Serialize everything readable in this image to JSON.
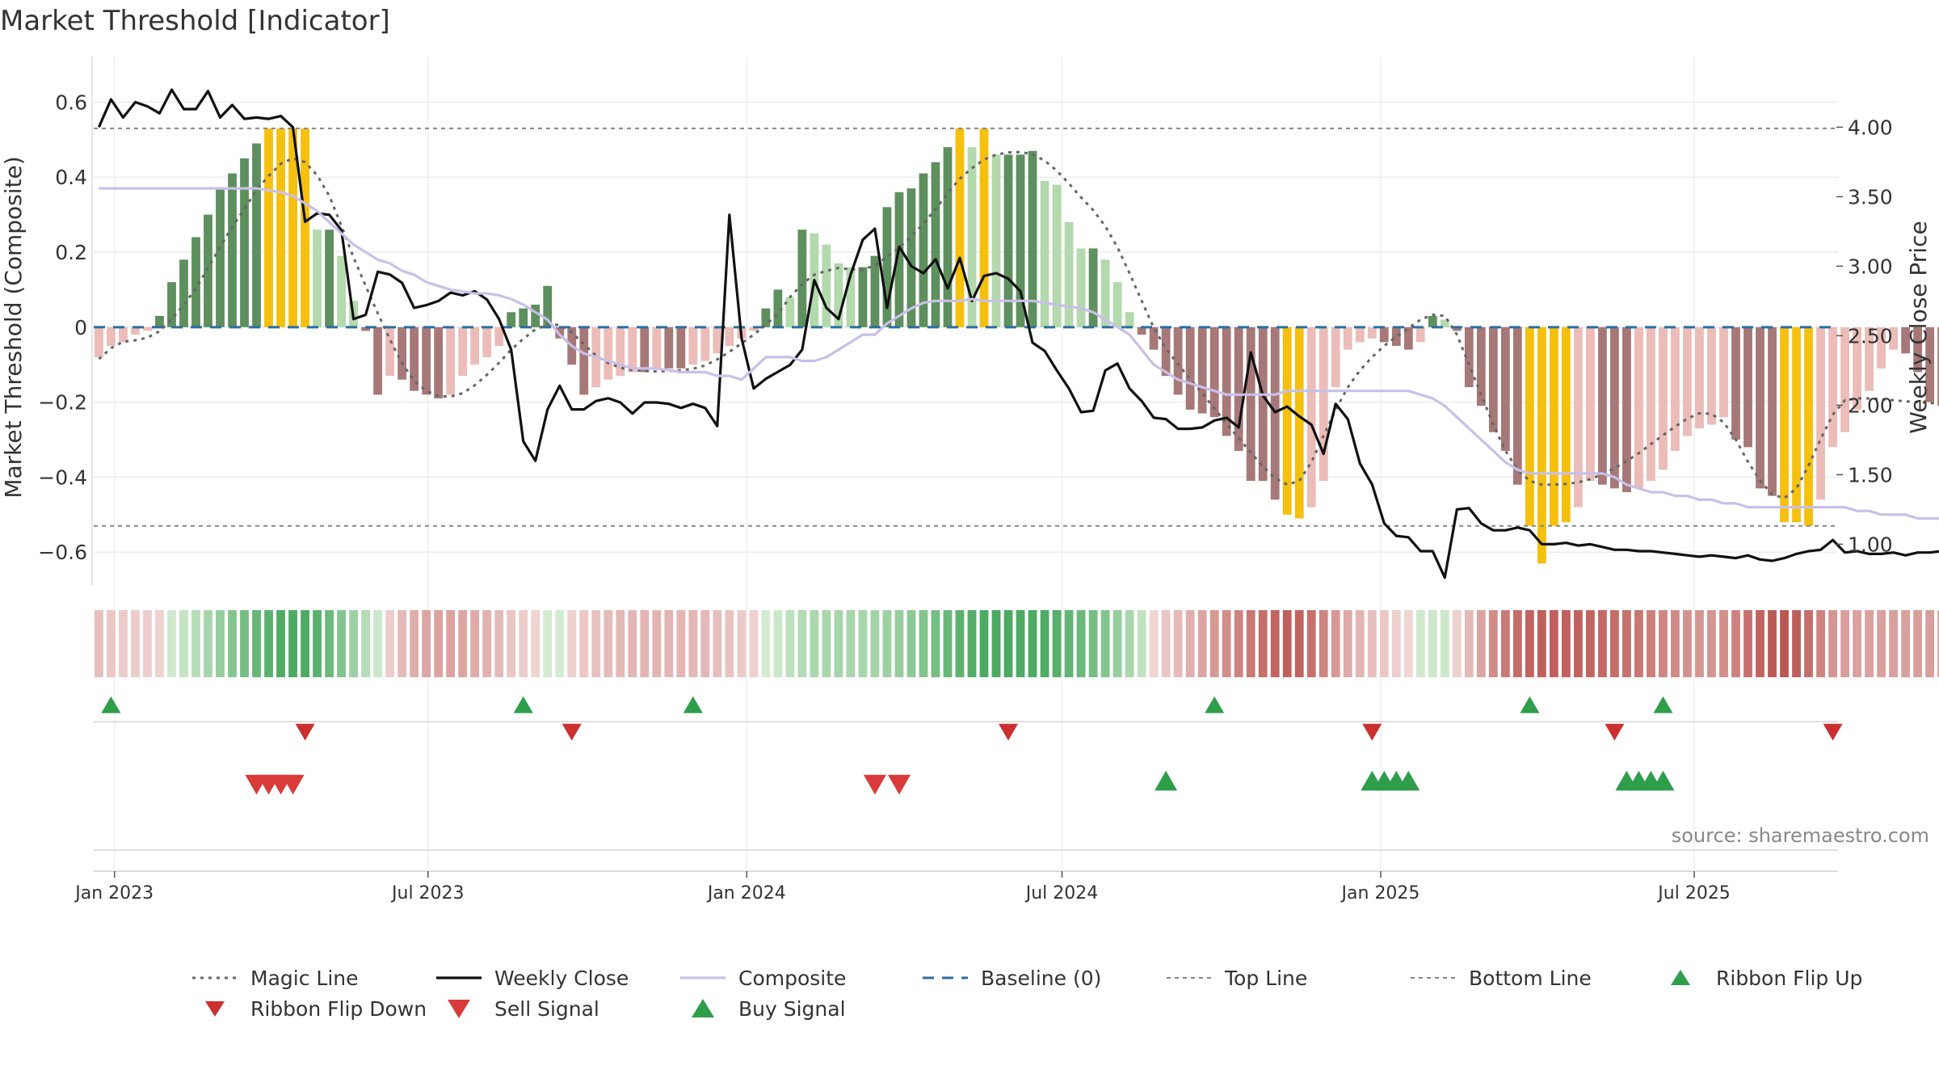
{
  "chart_data": {
    "type": "bar",
    "title": "Market Threshold [Indicator]",
    "ylabel": "Market Threshold (Composite)",
    "ylabel_right": "Weekly Close Price",
    "source": "source: sharemaestro.com",
    "ylim": [
      -0.69,
      0.7
    ],
    "ylim_right": [
      0.7,
      4.45
    ],
    "yticks": [
      "0.6",
      "0.4",
      "0.2",
      "0",
      "−0.2",
      "−0.4",
      "−0.6"
    ],
    "yticks_right": [
      "4.00",
      "3.50",
      "3.00",
      "2.50",
      "2.00",
      "1.50",
      "1.00"
    ],
    "xticks": [
      "Jan 2023",
      "Jul 2023",
      "Jan 2024",
      "Jul 2024",
      "Jan 2025",
      "Jul 2025"
    ],
    "top_line": 0.53,
    "bottom_line": -0.53,
    "baseline": 0,
    "x_start": "2022-12-23",
    "x_step_days": 7,
    "bars": [
      -0.08,
      -0.05,
      -0.04,
      -0.02,
      -0.01,
      0.03,
      0.12,
      0.18,
      0.24,
      0.3,
      0.37,
      0.41,
      0.45,
      0.49,
      0.53,
      0.53,
      0.53,
      0.53,
      0.26,
      0.26,
      0.19,
      0.07,
      -0.01,
      -0.18,
      -0.13,
      -0.14,
      -0.17,
      -0.18,
      -0.19,
      -0.18,
      -0.13,
      -0.1,
      -0.08,
      -0.05,
      0.04,
      0.05,
      0.06,
      0.11,
      -0.03,
      -0.1,
      -0.18,
      -0.16,
      -0.14,
      -0.13,
      -0.12,
      -0.12,
      -0.11,
      -0.11,
      -0.11,
      -0.1,
      -0.09,
      -0.07,
      -0.05,
      -0.03,
      -0.01,
      0.05,
      0.1,
      0.08,
      0.26,
      0.25,
      0.22,
      0.17,
      0.16,
      0.16,
      0.19,
      0.32,
      0.36,
      0.37,
      0.41,
      0.44,
      0.48,
      0.53,
      0.48,
      0.53,
      0.46,
      0.46,
      0.46,
      0.47,
      0.39,
      0.38,
      0.28,
      0.21,
      0.21,
      0.18,
      0.12,
      0.04,
      -0.02,
      -0.06,
      -0.13,
      -0.18,
      -0.22,
      -0.23,
      -0.24,
      -0.29,
      -0.33,
      -0.41,
      -0.41,
      -0.46,
      -0.5,
      -0.51,
      -0.48,
      -0.41,
      -0.16,
      -0.06,
      -0.04,
      -0.03,
      -0.04,
      -0.05,
      -0.06,
      -0.04,
      0.03,
      0.02,
      -0.01,
      -0.16,
      -0.21,
      -0.28,
      -0.33,
      -0.42,
      -0.53,
      -0.63,
      -0.53,
      -0.52,
      -0.48,
      -0.41,
      -0.42,
      -0.43,
      -0.44,
      -0.43,
      -0.41,
      -0.38,
      -0.33,
      -0.29,
      -0.27,
      -0.26,
      -0.24,
      -0.3,
      -0.32,
      -0.43,
      -0.45,
      -0.52,
      -0.52,
      -0.53,
      -0.46,
      -0.32,
      -0.28,
      -0.22,
      -0.17,
      -0.11,
      -0.06,
      -0.07,
      -0.12,
      -0.2,
      -0.21,
      -0.2,
      -0.21,
      -0.21,
      -0.21,
      -0.22,
      -0.25,
      -0.29
    ],
    "series": [
      {
        "name": "Magic Line",
        "axis": "left",
        "values": [
          -0.085,
          -0.056,
          -0.039,
          -0.035,
          -0.028,
          -0.011,
          0.021,
          0.06,
          0.103,
          0.158,
          0.213,
          0.268,
          0.315,
          0.366,
          0.403,
          0.436,
          0.45,
          0.44,
          0.405,
          0.35,
          0.27,
          0.186,
          0.11,
          0.037,
          -0.033,
          -0.096,
          -0.143,
          -0.17,
          -0.184,
          -0.185,
          -0.176,
          -0.155,
          -0.127,
          -0.095,
          -0.06,
          -0.031,
          -0.006,
          0.007,
          0.006,
          -0.014,
          -0.046,
          -0.076,
          -0.096,
          -0.108,
          -0.115,
          -0.117,
          -0.118,
          -0.117,
          -0.115,
          -0.111,
          -0.102,
          -0.086,
          -0.066,
          -0.043,
          -0.02,
          0.006,
          0.036,
          0.08,
          0.115,
          0.14,
          0.15,
          0.158,
          0.154,
          0.153,
          0.165,
          0.187,
          0.213,
          0.242,
          0.276,
          0.315,
          0.357,
          0.396,
          0.424,
          0.447,
          0.46,
          0.466,
          0.467,
          0.461,
          0.444,
          0.417,
          0.383,
          0.346,
          0.312,
          0.269,
          0.213,
          0.144,
          0.07,
          -0.002,
          -0.057,
          -0.099,
          -0.138,
          -0.177,
          -0.217,
          -0.258,
          -0.296,
          -0.334,
          -0.372,
          -0.403,
          -0.42,
          -0.41,
          -0.36,
          -0.29,
          -0.22,
          -0.16,
          -0.115,
          -0.08,
          -0.05,
          -0.025,
          -0.003,
          0.02,
          0.033,
          0.03,
          -0.02,
          -0.1,
          -0.18,
          -0.26,
          -0.33,
          -0.38,
          -0.41,
          -0.42,
          -0.42,
          -0.418,
          -0.414,
          -0.405,
          -0.392,
          -0.376,
          -0.357,
          -0.336,
          -0.312,
          -0.288,
          -0.265,
          -0.244,
          -0.23,
          -0.231,
          -0.254,
          -0.3,
          -0.359,
          -0.409,
          -0.446,
          -0.456,
          -0.43,
          -0.369,
          -0.298,
          -0.233,
          -0.195,
          -0.19,
          -0.19,
          -0.192,
          -0.195,
          -0.198,
          -0.2,
          -0.202,
          -0.205,
          -0.21,
          -0.212,
          -0.215
        ]
      },
      {
        "name": "Weekly Close",
        "axis": "right",
        "values": [
          4.0,
          4.2,
          4.07,
          4.18,
          4.15,
          4.1,
          4.27,
          4.13,
          4.13,
          4.26,
          4.07,
          4.16,
          4.06,
          4.07,
          4.06,
          4.08,
          4.0,
          3.32,
          3.38,
          3.37,
          3.26,
          2.62,
          2.65,
          2.96,
          2.94,
          2.88,
          2.7,
          2.72,
          2.75,
          2.81,
          2.79,
          2.82,
          2.76,
          2.62,
          2.4,
          1.74,
          1.6,
          1.97,
          2.14,
          1.97,
          1.97,
          2.03,
          2.05,
          2.02,
          1.94,
          2.02,
          2.02,
          2.01,
          1.98,
          2.01,
          1.98,
          1.85,
          3.37,
          2.48,
          2.12,
          2.19,
          2.24,
          2.29,
          2.4,
          2.9,
          2.7,
          2.62,
          2.94,
          3.19,
          3.27,
          2.7,
          3.14,
          3.0,
          2.95,
          3.05,
          2.84,
          3.06,
          2.75,
          2.93,
          2.95,
          2.91,
          2.82,
          2.45,
          2.39,
          2.25,
          2.12,
          1.95,
          1.96,
          2.25,
          2.3,
          2.12,
          2.03,
          1.91,
          1.9,
          1.83,
          1.83,
          1.84,
          1.89,
          1.91,
          1.84,
          2.38,
          2.07,
          1.95,
          1.99,
          1.92,
          1.86,
          1.65,
          2.01,
          1.9,
          1.58,
          1.43,
          1.15,
          1.06,
          1.05,
          0.95,
          0.95,
          0.76,
          1.25,
          1.26,
          1.15,
          1.1,
          1.1,
          1.12,
          1.1,
          1.0,
          1.0,
          1.01,
          0.99,
          1.0,
          0.98,
          0.96,
          0.96,
          0.95,
          0.95,
          0.94,
          0.93,
          0.92,
          0.91,
          0.92,
          0.91,
          0.9,
          0.92,
          0.89,
          0.88,
          0.9,
          0.93,
          0.95,
          0.96,
          1.03,
          0.94,
          0.95,
          0.93,
          0.93,
          0.94,
          0.92,
          0.94,
          0.94,
          0.95,
          0.94,
          0.94,
          0.95,
          0.94,
          0.93
        ]
      },
      {
        "name": "Composite",
        "axis": "left",
        "values": [
          0.37,
          0.37,
          0.37,
          0.37,
          0.37,
          0.37,
          0.37,
          0.37,
          0.37,
          0.37,
          0.37,
          0.37,
          0.37,
          0.37,
          0.365,
          0.36,
          0.35,
          0.33,
          0.31,
          0.28,
          0.25,
          0.22,
          0.2,
          0.18,
          0.17,
          0.15,
          0.14,
          0.12,
          0.11,
          0.1,
          0.095,
          0.09,
          0.09,
          0.085,
          0.075,
          0.06,
          0.04,
          0.02,
          -0.02,
          -0.05,
          -0.07,
          -0.08,
          -0.09,
          -0.1,
          -0.11,
          -0.11,
          -0.11,
          -0.115,
          -0.12,
          -0.12,
          -0.12,
          -0.13,
          -0.13,
          -0.14,
          -0.11,
          -0.08,
          -0.08,
          -0.08,
          -0.09,
          -0.09,
          -0.08,
          -0.06,
          -0.04,
          -0.02,
          -0.02,
          0.01,
          0.03,
          0.05,
          0.065,
          0.07,
          0.07,
          0.07,
          0.075,
          0.07,
          0.07,
          0.07,
          0.07,
          0.07,
          0.065,
          0.06,
          0.055,
          0.05,
          0.04,
          0.02,
          0.0,
          -0.02,
          -0.06,
          -0.1,
          -0.12,
          -0.14,
          -0.15,
          -0.16,
          -0.17,
          -0.18,
          -0.18,
          -0.18,
          -0.18,
          -0.18,
          -0.17,
          -0.17,
          -0.17,
          -0.17,
          -0.17,
          -0.17,
          -0.17,
          -0.17,
          -0.17,
          -0.17,
          -0.17,
          -0.18,
          -0.19,
          -0.21,
          -0.24,
          -0.27,
          -0.3,
          -0.33,
          -0.36,
          -0.38,
          -0.39,
          -0.39,
          -0.39,
          -0.39,
          -0.39,
          -0.39,
          -0.39,
          -0.4,
          -0.42,
          -0.43,
          -0.44,
          -0.44,
          -0.45,
          -0.45,
          -0.46,
          -0.46,
          -0.47,
          -0.47,
          -0.48,
          -0.48,
          -0.48,
          -0.48,
          -0.48,
          -0.48,
          -0.48,
          -0.48,
          -0.48,
          -0.49,
          -0.49,
          -0.5,
          -0.5,
          -0.5,
          -0.51,
          -0.51,
          -0.51,
          -0.51,
          -0.51,
          -0.51,
          -0.51,
          -0.51
        ]
      }
    ],
    "ribbon_flip_up_dates": [
      "2022-12-30",
      "2023-08-25",
      "2023-12-01",
      "2024-09-27",
      "2025-03-28",
      "2025-06-13"
    ],
    "ribbon_flip_down_dates": [
      "2023-04-21",
      "2023-09-22",
      "2024-05-31",
      "2024-12-27",
      "2025-05-16",
      "2025-09-19"
    ],
    "sell_signal_dates": [
      "2023-03-24",
      "2023-03-31",
      "2023-04-07",
      "2023-04-14",
      "2024-03-15",
      "2024-03-29"
    ],
    "buy_signal_dates": [
      "2024-08-30",
      "2024-12-27",
      "2025-01-03",
      "2025-01-10",
      "2025-01-17",
      "2025-05-23",
      "2025-05-30",
      "2025-06-06",
      "2025-06-13"
    ],
    "colors": {
      "strong_green": "#5e8f5e",
      "light_green": "#b3d9ad",
      "strong_red": "#a67878",
      "light_red": "#ebbcb8",
      "extreme": "#f5c00e",
      "magic_line": "#666666",
      "weekly_close": "#111111",
      "composite": "#c9c0e8",
      "baseline": "#2c6e9e",
      "threshold_line": "#888888",
      "buy_marker": "#2e9e4a",
      "sell_marker": "#d93a3a",
      "flip_up_marker": "#2e9e4a",
      "flip_down_marker": "#cc2f2f"
    },
    "legend": [
      {
        "label": "Magic Line",
        "type": "dotted"
      },
      {
        "label": "Weekly Close",
        "type": "solid"
      },
      {
        "label": "Composite",
        "type": "composite"
      },
      {
        "label": "Baseline (0)",
        "type": "dashed"
      },
      {
        "label": "Top Line",
        "type": "thin-dashed"
      },
      {
        "label": "Bottom Line",
        "type": "thin-dashed"
      },
      {
        "label": "Ribbon Flip Up",
        "type": "tri-up-green"
      },
      {
        "label": "Ribbon Flip Down",
        "type": "tri-down-red"
      },
      {
        "label": "Sell Signal",
        "type": "tri-down-sell"
      },
      {
        "label": "Buy Signal",
        "type": "tri-up-buy"
      }
    ]
  }
}
